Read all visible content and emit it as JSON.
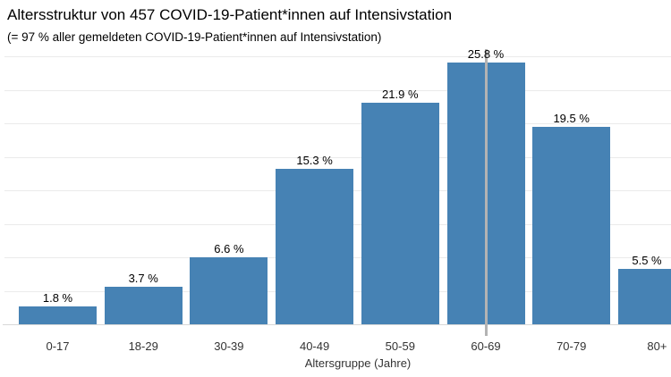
{
  "chart_data": {
    "type": "bar",
    "title": "Altersstruktur von 457 COVID-19-Patient*innen auf Intensivstation",
    "subtitle": "(= 97 % aller gemeldeten COVID-19-Patient*innen auf Intensivstation)",
    "categories": [
      "0-17",
      "18-29",
      "30-39",
      "40-49",
      "50-59",
      "60-69",
      "70-79",
      "80+"
    ],
    "values": [
      1.8,
      3.7,
      6.6,
      15.3,
      21.9,
      25.8,
      19.5,
      5.5
    ],
    "value_labels": [
      "1.8 %",
      "3.7 %",
      "6.6 %",
      "15.3 %",
      "21.9 %",
      "25.8 %",
      "19.5 %",
      "5.5 %"
    ],
    "xlabel": "Altersgruppe (Jahre)",
    "ylabel": "",
    "ylim": [
      0,
      27
    ],
    "grid": "horizontal",
    "legend": "none",
    "bar_color": "#4682b4",
    "grid_color": "#ebebeb",
    "baseline_color": "#d8d8d8",
    "hover_marker": {
      "category": "60-69",
      "category_index": 5,
      "color": "#b3b3b3"
    }
  }
}
